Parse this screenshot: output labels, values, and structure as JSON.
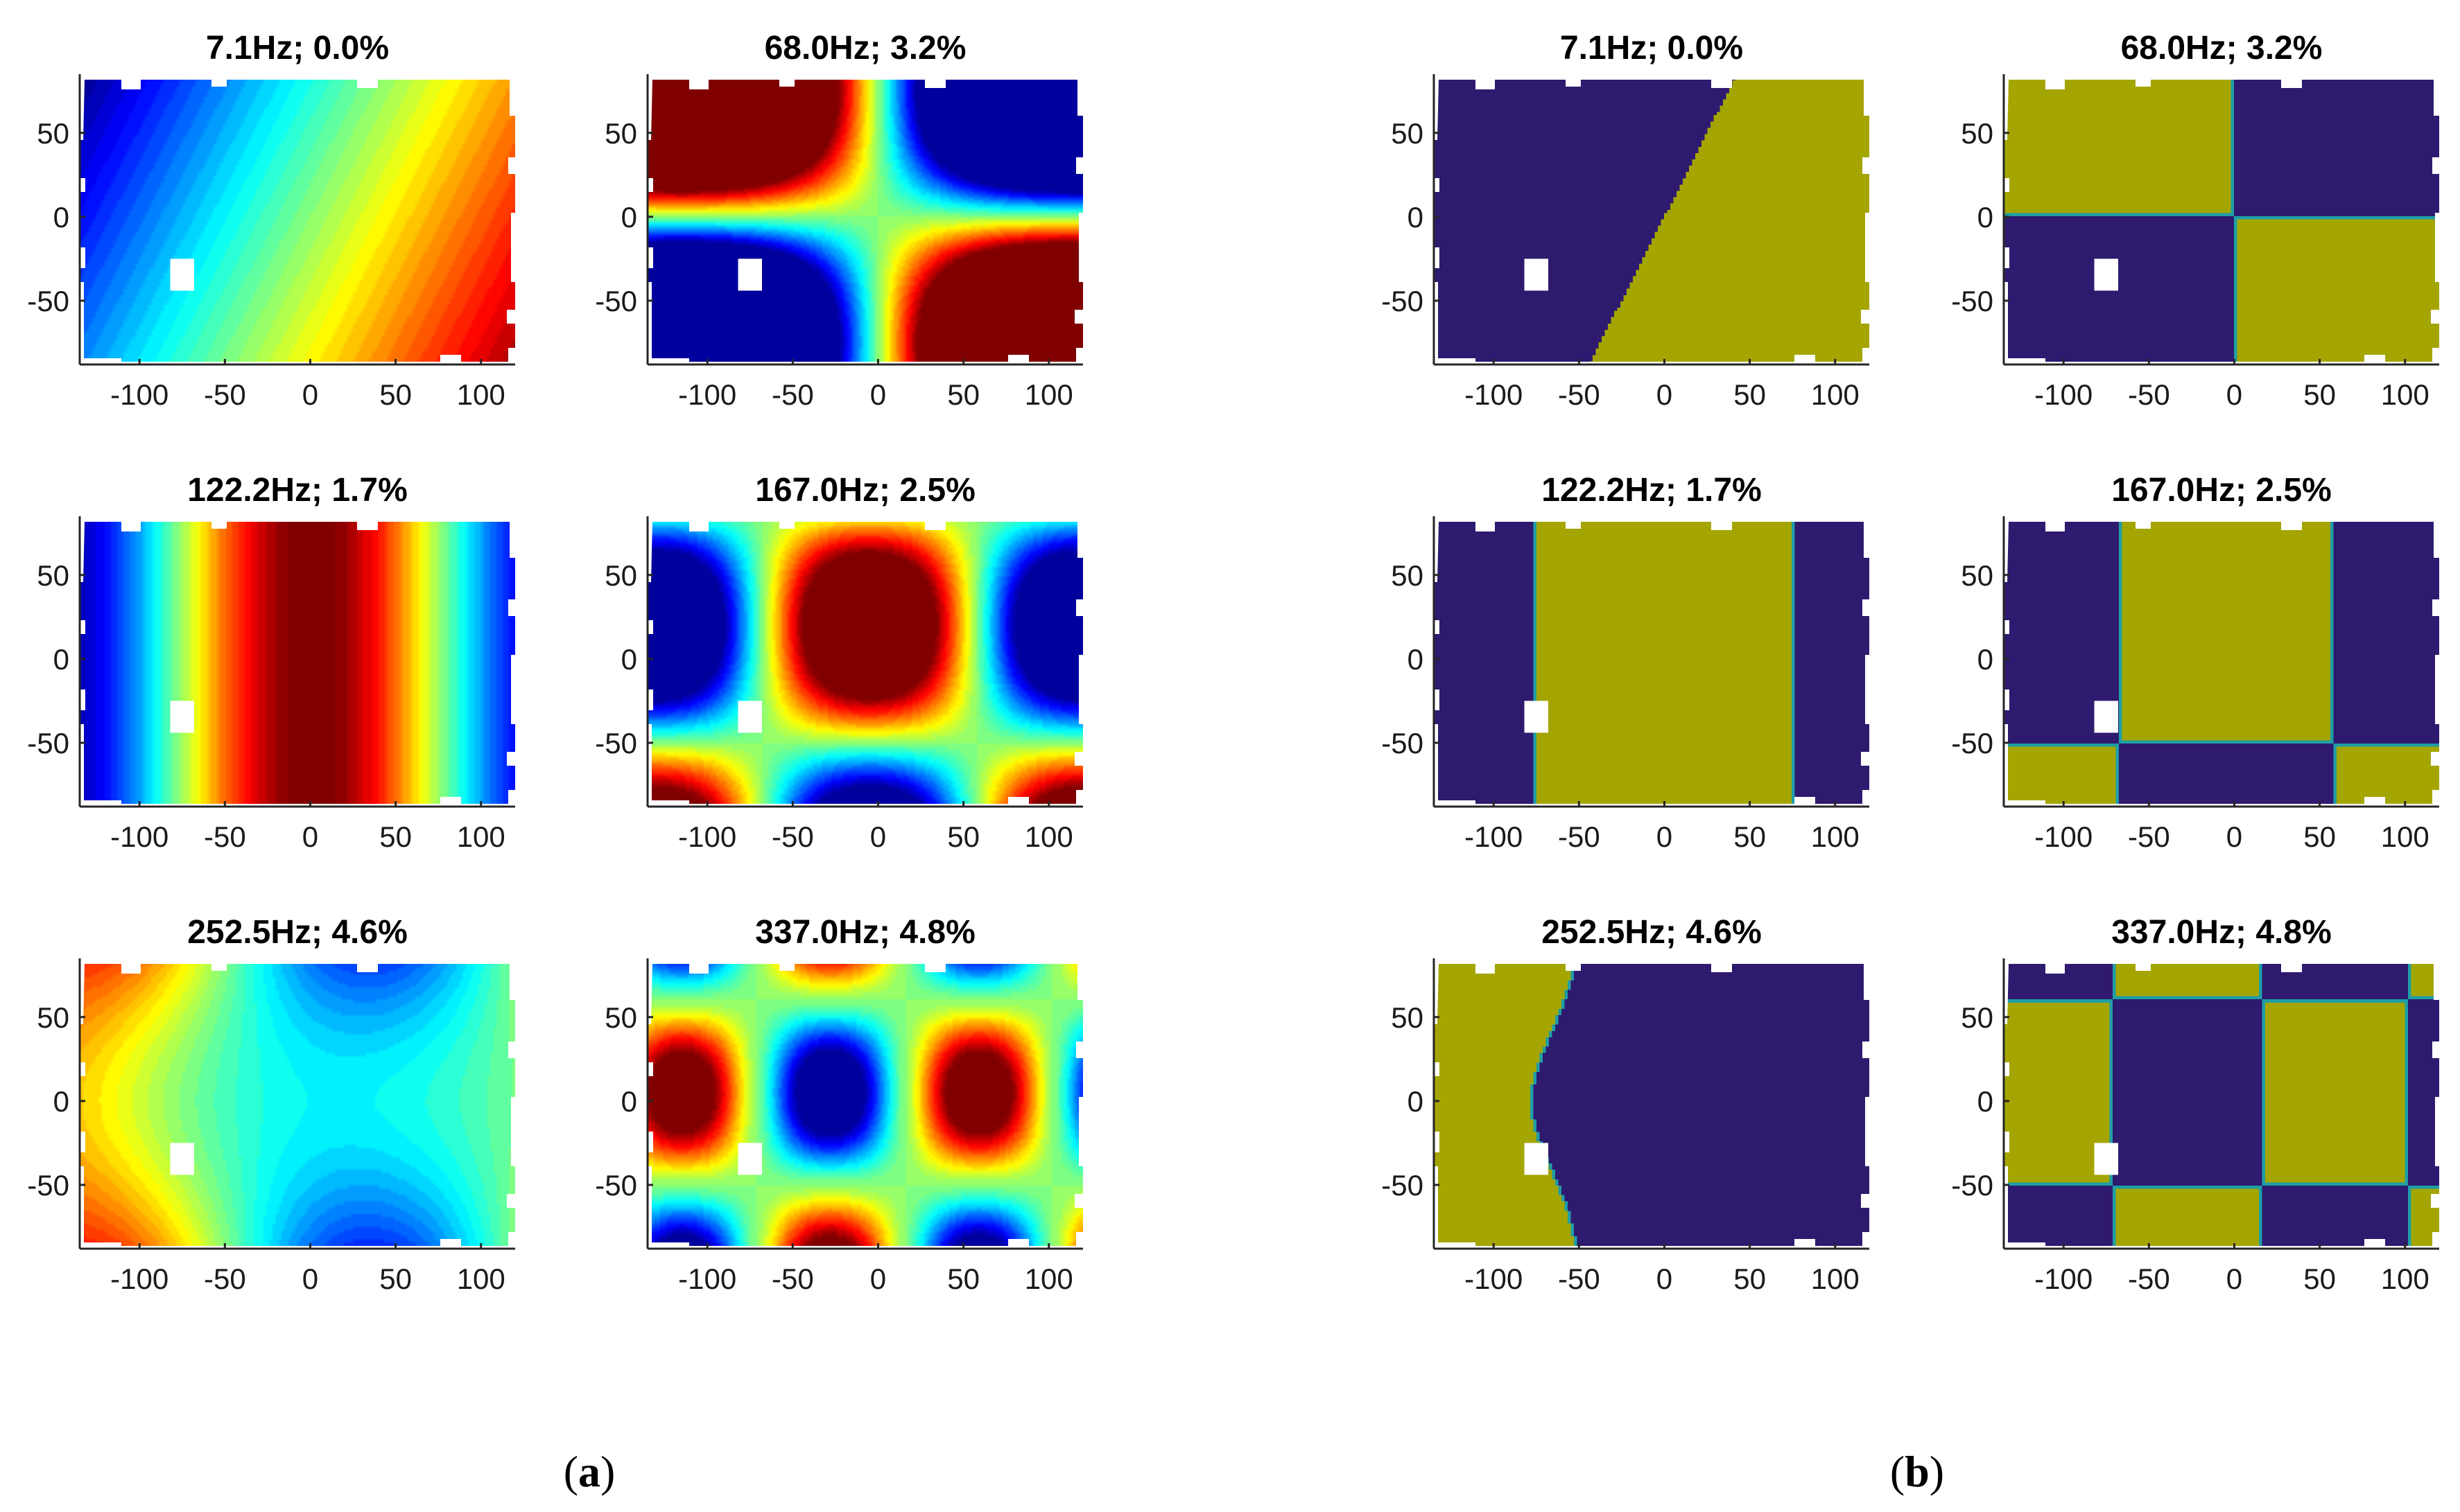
{
  "figure": {
    "panel_labels": [
      {
        "open": "(",
        "letter": "a",
        "close": ")"
      },
      {
        "open": "(",
        "letter": "b",
        "close": ")"
      }
    ]
  },
  "colors": {
    "jet": [
      "#00008f",
      "#0000ff",
      "#00ffff",
      "#ffff00",
      "#ff0000",
      "#800000"
    ],
    "binary_negative": "#2e1a6e",
    "binary_positive": "#a4a500",
    "binary_edge": "#1f9ea6"
  },
  "chart_data": [
    {
      "type": "heatmap",
      "panel": "a",
      "description": "Mode shape contour maps (jet colormap)",
      "xlim": [
        -135,
        120
      ],
      "ylim": [
        -88,
        85
      ],
      "xticks": [
        -100,
        -50,
        0,
        50,
        100
      ],
      "yticks": [
        50,
        0,
        -50
      ],
      "xtick_labels": [
        "-100",
        "-50",
        "0",
        "50",
        "100"
      ],
      "ytick_labels": [
        "50",
        "0",
        "-50"
      ],
      "modes": [
        {
          "title": "7.1Hz; 0.0%",
          "frequency_hz": 7.1,
          "damping_pct": 0.0
        },
        {
          "title": "68.0Hz; 3.2%",
          "frequency_hz": 68.0,
          "damping_pct": 3.2
        },
        {
          "title": "122.2Hz; 1.7%",
          "frequency_hz": 122.2,
          "damping_pct": 1.7
        },
        {
          "title": "167.0Hz; 2.5%",
          "frequency_hz": 167.0,
          "damping_pct": 2.5
        },
        {
          "title": "252.5Hz; 4.6%",
          "frequency_hz": 252.5,
          "damping_pct": 4.6
        },
        {
          "title": "337.0Hz; 4.8%",
          "frequency_hz": 337.0,
          "damping_pct": 4.8
        }
      ]
    },
    {
      "type": "heatmap",
      "panel": "b",
      "description": "Mode shape sign maps (two-color)",
      "xlim": [
        -135,
        120
      ],
      "ylim": [
        -88,
        85
      ],
      "xticks": [
        -100,
        -50,
        0,
        50,
        100
      ],
      "yticks": [
        50,
        0,
        -50
      ],
      "xtick_labels": [
        "-100",
        "-50",
        "0",
        "50",
        "100"
      ],
      "ytick_labels": [
        "50",
        "0",
        "-50"
      ],
      "modes": [
        {
          "title": "7.1Hz; 0.0%",
          "frequency_hz": 7.1,
          "damping_pct": 0.0
        },
        {
          "title": "68.0Hz; 3.2%",
          "frequency_hz": 68.0,
          "damping_pct": 3.2
        },
        {
          "title": "122.2Hz; 1.7%",
          "frequency_hz": 122.2,
          "damping_pct": 1.7
        },
        {
          "title": "167.0Hz; 2.5%",
          "frequency_hz": 167.0,
          "damping_pct": 2.5
        },
        {
          "title": "252.5Hz; 4.6%",
          "frequency_hz": 252.5,
          "damping_pct": 4.6
        },
        {
          "title": "337.0Hz; 4.8%",
          "frequency_hz": 337.0,
          "damping_pct": 4.8
        }
      ]
    }
  ]
}
